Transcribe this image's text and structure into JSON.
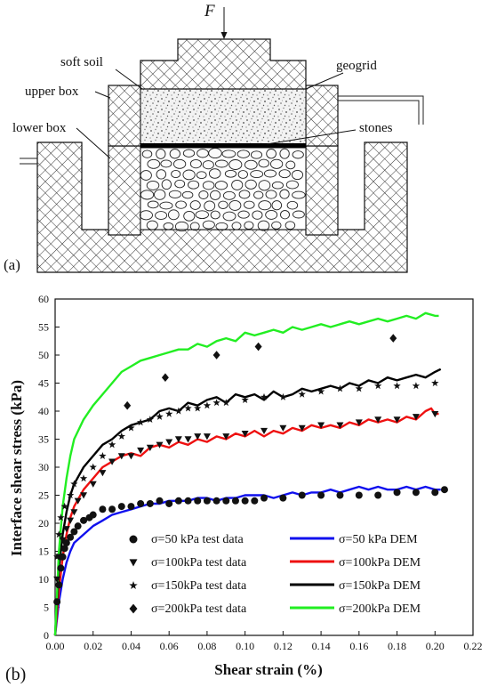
{
  "panel_a": {
    "label": "(a)",
    "force_label": "F",
    "labels": {
      "soft_soil": "soft soil",
      "upper_box": "upper box",
      "lower_box": "lower box",
      "geogrid": "geogrid",
      "stones": "stones"
    }
  },
  "panel_b": {
    "label": "(b)"
  },
  "colors": {
    "sigma50": "#1010ee",
    "sigma100": "#ee1010",
    "sigma150": "#000000",
    "sigma200": "#22ee22",
    "hatch": "#222222"
  },
  "chart_data": {
    "type": "line",
    "xlabel": "Shear strain (%)",
    "ylabel": "Interface shear stress (kPa)",
    "xlim": [
      0.0,
      0.22
    ],
    "ylim": [
      0,
      60
    ],
    "xticks": [
      "0.00",
      "0.02",
      "0.04",
      "0.06",
      "0.08",
      "0.10",
      "0.12",
      "0.14",
      "0.16",
      "0.18",
      "0.20",
      "0.22"
    ],
    "yticks": [
      "0",
      "5",
      "10",
      "15",
      "20",
      "25",
      "30",
      "35",
      "40",
      "45",
      "50",
      "55",
      "60"
    ],
    "grid": false,
    "legend_position": "bottom-right",
    "test_data": [
      {
        "label": "σ=50  kPa  test data",
        "marker": "circle",
        "points": [
          [
            0.001,
            6
          ],
          [
            0.002,
            9
          ],
          [
            0.003,
            12
          ],
          [
            0.004,
            14
          ],
          [
            0.005,
            15.5
          ],
          [
            0.006,
            16.5
          ],
          [
            0.008,
            17.5
          ],
          [
            0.01,
            18.5
          ],
          [
            0.012,
            19.5
          ],
          [
            0.015,
            20.5
          ],
          [
            0.018,
            21
          ],
          [
            0.02,
            21.5
          ],
          [
            0.025,
            22.5
          ],
          [
            0.03,
            22.5
          ],
          [
            0.035,
            23
          ],
          [
            0.04,
            23
          ],
          [
            0.045,
            23.5
          ],
          [
            0.05,
            23.5
          ],
          [
            0.055,
            24
          ],
          [
            0.06,
            23.5
          ],
          [
            0.065,
            24
          ],
          [
            0.07,
            24
          ],
          [
            0.075,
            24
          ],
          [
            0.08,
            24
          ],
          [
            0.085,
            24
          ],
          [
            0.09,
            24
          ],
          [
            0.095,
            24
          ],
          [
            0.1,
            24
          ],
          [
            0.105,
            24
          ],
          [
            0.11,
            24.5
          ],
          [
            0.12,
            24.5
          ],
          [
            0.13,
            25
          ],
          [
            0.14,
            25
          ],
          [
            0.15,
            25
          ],
          [
            0.16,
            25
          ],
          [
            0.17,
            25
          ],
          [
            0.18,
            25.5
          ],
          [
            0.19,
            25.5
          ],
          [
            0.2,
            25.5
          ],
          [
            0.205,
            26
          ]
        ]
      },
      {
        "label": "σ=100kPa  test data",
        "marker": "triangle-down",
        "points": [
          [
            0.001,
            10
          ],
          [
            0.002,
            14
          ],
          [
            0.004,
            17
          ],
          [
            0.006,
            19
          ],
          [
            0.008,
            20.5
          ],
          [
            0.01,
            22
          ],
          [
            0.012,
            24
          ],
          [
            0.015,
            25
          ],
          [
            0.02,
            27
          ],
          [
            0.025,
            29
          ],
          [
            0.03,
            31
          ],
          [
            0.035,
            32
          ],
          [
            0.04,
            32
          ],
          [
            0.045,
            33
          ],
          [
            0.05,
            33.5
          ],
          [
            0.055,
            34
          ],
          [
            0.06,
            34.5
          ],
          [
            0.065,
            35
          ],
          [
            0.07,
            35
          ],
          [
            0.075,
            35.5
          ],
          [
            0.08,
            35.5
          ],
          [
            0.09,
            35.5
          ],
          [
            0.1,
            36
          ],
          [
            0.11,
            36.5
          ],
          [
            0.12,
            37
          ],
          [
            0.13,
            37
          ],
          [
            0.14,
            37.5
          ],
          [
            0.15,
            37.5
          ],
          [
            0.16,
            38
          ],
          [
            0.17,
            38.5
          ],
          [
            0.18,
            38.5
          ],
          [
            0.19,
            39
          ],
          [
            0.2,
            39.5
          ]
        ]
      },
      {
        "label": "σ=150kPa  test data",
        "marker": "star",
        "points": [
          [
            0.001,
            14
          ],
          [
            0.002,
            18
          ],
          [
            0.003,
            21
          ],
          [
            0.005,
            23
          ],
          [
            0.008,
            25
          ],
          [
            0.01,
            27
          ],
          [
            0.015,
            28
          ],
          [
            0.02,
            30
          ],
          [
            0.025,
            32
          ],
          [
            0.03,
            34
          ],
          [
            0.035,
            35.5
          ],
          [
            0.04,
            37
          ],
          [
            0.045,
            38
          ],
          [
            0.05,
            38.5
          ],
          [
            0.055,
            39
          ],
          [
            0.06,
            39.5
          ],
          [
            0.065,
            40
          ],
          [
            0.07,
            40.5
          ],
          [
            0.075,
            40.5
          ],
          [
            0.08,
            41
          ],
          [
            0.085,
            41.5
          ],
          [
            0.09,
            41.5
          ],
          [
            0.1,
            42
          ],
          [
            0.11,
            42.5
          ],
          [
            0.12,
            42.5
          ],
          [
            0.13,
            43
          ],
          [
            0.14,
            43.5
          ],
          [
            0.15,
            44
          ],
          [
            0.16,
            44
          ],
          [
            0.17,
            44.5
          ],
          [
            0.18,
            44.5
          ],
          [
            0.19,
            44.5
          ],
          [
            0.2,
            45
          ]
        ]
      },
      {
        "label": "σ=200kPa  test data",
        "marker": "diamond",
        "points": [
          [
            0.038,
            41
          ],
          [
            0.058,
            46
          ],
          [
            0.085,
            50
          ],
          [
            0.107,
            51.5
          ],
          [
            0.178,
            53
          ]
        ]
      }
    ],
    "series": [
      {
        "label": "σ=50  kPa  DEM",
        "points": [
          [
            0.0,
            0
          ],
          [
            0.002,
            6
          ],
          [
            0.004,
            10
          ],
          [
            0.006,
            13
          ],
          [
            0.008,
            15
          ],
          [
            0.01,
            16.5
          ],
          [
            0.015,
            18
          ],
          [
            0.02,
            19.5
          ],
          [
            0.025,
            20.5
          ],
          [
            0.03,
            21.5
          ],
          [
            0.035,
            22
          ],
          [
            0.04,
            22.5
          ],
          [
            0.045,
            23
          ],
          [
            0.05,
            23.5
          ],
          [
            0.055,
            23.5
          ],
          [
            0.06,
            24
          ],
          [
            0.065,
            24
          ],
          [
            0.07,
            24
          ],
          [
            0.075,
            24.5
          ],
          [
            0.08,
            24.5
          ],
          [
            0.085,
            24
          ],
          [
            0.09,
            24.5
          ],
          [
            0.095,
            24.5
          ],
          [
            0.1,
            25
          ],
          [
            0.105,
            25
          ],
          [
            0.11,
            25
          ],
          [
            0.115,
            24.5
          ],
          [
            0.12,
            25
          ],
          [
            0.125,
            25.5
          ],
          [
            0.13,
            25
          ],
          [
            0.135,
            25.5
          ],
          [
            0.14,
            25.5
          ],
          [
            0.145,
            26
          ],
          [
            0.15,
            25.5
          ],
          [
            0.155,
            26
          ],
          [
            0.16,
            26.5
          ],
          [
            0.165,
            26
          ],
          [
            0.17,
            26.5
          ],
          [
            0.175,
            26
          ],
          [
            0.18,
            26
          ],
          [
            0.185,
            26.5
          ],
          [
            0.19,
            26
          ],
          [
            0.195,
            26.5
          ],
          [
            0.2,
            26
          ],
          [
            0.203,
            26
          ]
        ]
      },
      {
        "label": "σ=100kPa  DEM",
        "points": [
          [
            0.0,
            0
          ],
          [
            0.002,
            8
          ],
          [
            0.004,
            14
          ],
          [
            0.006,
            18
          ],
          [
            0.008,
            21
          ],
          [
            0.01,
            23
          ],
          [
            0.015,
            26
          ],
          [
            0.02,
            28
          ],
          [
            0.025,
            30
          ],
          [
            0.03,
            31
          ],
          [
            0.035,
            32
          ],
          [
            0.04,
            32.5
          ],
          [
            0.045,
            32
          ],
          [
            0.05,
            33.5
          ],
          [
            0.055,
            34
          ],
          [
            0.06,
            33.5
          ],
          [
            0.065,
            34.5
          ],
          [
            0.07,
            34
          ],
          [
            0.075,
            35
          ],
          [
            0.08,
            34.5
          ],
          [
            0.085,
            35.5
          ],
          [
            0.09,
            35
          ],
          [
            0.095,
            36
          ],
          [
            0.1,
            35.5
          ],
          [
            0.105,
            36.5
          ],
          [
            0.11,
            35.5
          ],
          [
            0.115,
            36.5
          ],
          [
            0.12,
            36
          ],
          [
            0.125,
            37
          ],
          [
            0.13,
            36.5
          ],
          [
            0.135,
            37.5
          ],
          [
            0.14,
            37
          ],
          [
            0.145,
            37.5
          ],
          [
            0.15,
            37
          ],
          [
            0.155,
            38
          ],
          [
            0.16,
            37.5
          ],
          [
            0.165,
            38.5
          ],
          [
            0.17,
            38
          ],
          [
            0.175,
            38.5
          ],
          [
            0.18,
            38
          ],
          [
            0.185,
            39
          ],
          [
            0.19,
            38.5
          ],
          [
            0.195,
            40
          ],
          [
            0.198,
            40.5
          ],
          [
            0.2,
            39.5
          ],
          [
            0.202,
            39.5
          ]
        ]
      },
      {
        "label": "σ=150kPa  DEM",
        "points": [
          [
            0.0,
            0
          ],
          [
            0.002,
            12
          ],
          [
            0.004,
            18
          ],
          [
            0.006,
            22
          ],
          [
            0.008,
            25
          ],
          [
            0.01,
            27
          ],
          [
            0.015,
            30
          ],
          [
            0.02,
            32
          ],
          [
            0.025,
            34
          ],
          [
            0.03,
            35
          ],
          [
            0.035,
            36.5
          ],
          [
            0.04,
            37.5
          ],
          [
            0.045,
            38
          ],
          [
            0.05,
            38.5
          ],
          [
            0.055,
            40
          ],
          [
            0.06,
            40.5
          ],
          [
            0.065,
            40
          ],
          [
            0.07,
            41.5
          ],
          [
            0.075,
            41
          ],
          [
            0.08,
            42
          ],
          [
            0.085,
            42.5
          ],
          [
            0.09,
            41.5
          ],
          [
            0.095,
            43
          ],
          [
            0.1,
            42.5
          ],
          [
            0.105,
            43
          ],
          [
            0.11,
            42
          ],
          [
            0.115,
            43.5
          ],
          [
            0.12,
            42.5
          ],
          [
            0.125,
            43
          ],
          [
            0.13,
            44
          ],
          [
            0.135,
            43.5
          ],
          [
            0.14,
            44
          ],
          [
            0.145,
            44.5
          ],
          [
            0.15,
            44
          ],
          [
            0.155,
            45
          ],
          [
            0.16,
            44.5
          ],
          [
            0.165,
            45.5
          ],
          [
            0.17,
            45
          ],
          [
            0.175,
            46
          ],
          [
            0.18,
            45.5
          ],
          [
            0.185,
            46
          ],
          [
            0.19,
            46.5
          ],
          [
            0.195,
            46
          ],
          [
            0.2,
            47
          ],
          [
            0.203,
            47.5
          ]
        ]
      },
      {
        "label": "σ=200kPa  DEM",
        "points": [
          [
            0.0,
            0
          ],
          [
            0.002,
            15
          ],
          [
            0.004,
            23
          ],
          [
            0.006,
            28
          ],
          [
            0.008,
            32
          ],
          [
            0.01,
            35
          ],
          [
            0.015,
            38.5
          ],
          [
            0.02,
            41
          ],
          [
            0.025,
            43
          ],
          [
            0.03,
            45
          ],
          [
            0.035,
            47
          ],
          [
            0.04,
            48
          ],
          [
            0.045,
            49
          ],
          [
            0.05,
            49.5
          ],
          [
            0.055,
            50
          ],
          [
            0.06,
            50.5
          ],
          [
            0.065,
            51
          ],
          [
            0.07,
            51
          ],
          [
            0.075,
            52
          ],
          [
            0.08,
            51.5
          ],
          [
            0.085,
            52.5
          ],
          [
            0.09,
            53
          ],
          [
            0.095,
            52.5
          ],
          [
            0.1,
            54
          ],
          [
            0.105,
            53.5
          ],
          [
            0.11,
            54
          ],
          [
            0.115,
            54.5
          ],
          [
            0.12,
            54
          ],
          [
            0.125,
            55
          ],
          [
            0.13,
            54.5
          ],
          [
            0.135,
            55
          ],
          [
            0.14,
            55.5
          ],
          [
            0.145,
            55
          ],
          [
            0.15,
            55.5
          ],
          [
            0.155,
            56
          ],
          [
            0.16,
            55.5
          ],
          [
            0.165,
            56
          ],
          [
            0.17,
            56.5
          ],
          [
            0.175,
            56
          ],
          [
            0.18,
            56.5
          ],
          [
            0.185,
            57
          ],
          [
            0.19,
            56.5
          ],
          [
            0.195,
            57.5
          ],
          [
            0.2,
            57
          ],
          [
            0.202,
            57
          ]
        ]
      }
    ]
  }
}
